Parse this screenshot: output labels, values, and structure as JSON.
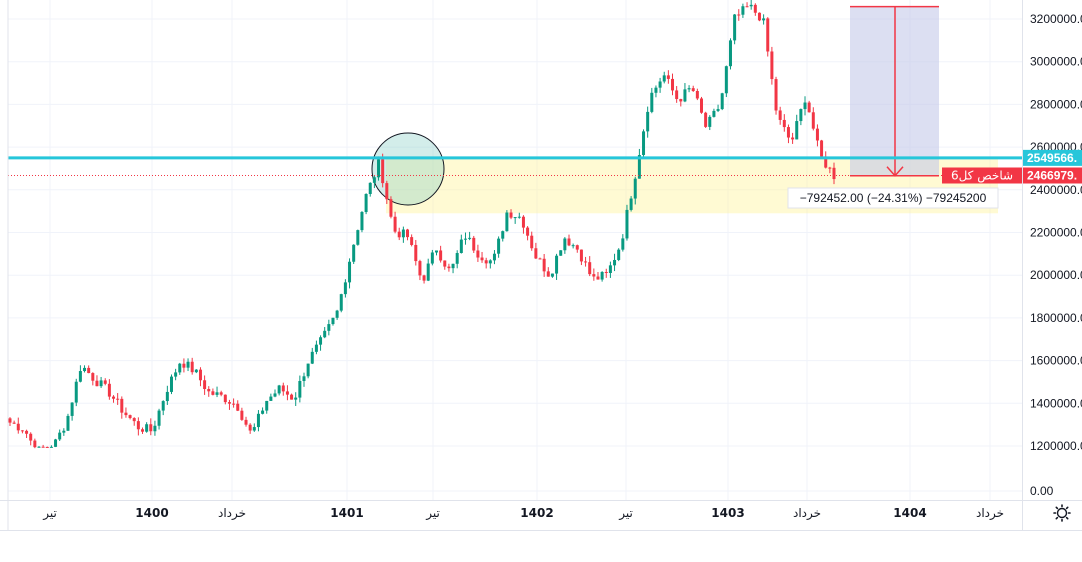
{
  "chart_data": {
    "type": "candlestick",
    "title": "",
    "instrument_label": "شاخص کل6",
    "y_axis": {
      "range": [
        0,
        3300000
      ],
      "scale": "custom-compressed-below-1200000",
      "ticks": [
        "3200000.00",
        "3000000.00",
        "2800000.00",
        "2600000.00",
        "2400000.00",
        "2200000.00",
        "2000000.00",
        "1800000.00",
        "1600000.00",
        "1400000.00",
        "1200000.00",
        "0.00"
      ],
      "tick_values": [
        3200000,
        3000000,
        2800000,
        2600000,
        2400000,
        2200000,
        2000000,
        1800000,
        1600000,
        1400000,
        1200000,
        0
      ]
    },
    "x_axis": {
      "labels": [
        {
          "text": "تیر",
          "bold": false
        },
        {
          "text": "1400",
          "bold": true
        },
        {
          "text": "خرداد",
          "bold": false
        },
        {
          "text": "1401",
          "bold": true
        },
        {
          "text": "تیر",
          "bold": false
        },
        {
          "text": "1402",
          "bold": true
        },
        {
          "text": "تیر",
          "bold": false
        },
        {
          "text": "1403",
          "bold": true
        },
        {
          "text": "خرداد",
          "bold": false
        },
        {
          "text": "1404",
          "bold": true
        },
        {
          "text": "خرداد",
          "bold": false
        }
      ]
    },
    "grid": true,
    "colors": {
      "up": "#089981",
      "down": "#f23645",
      "horizontal_line": "#26c6da",
      "zone_fill": "#fff59d",
      "circle_fill": "#80cbc4",
      "measure_fill": "#c5cae9",
      "measure_line": "#f23645",
      "price_tag_last": "#f23645",
      "price_tag_level": "#26c6da"
    },
    "horizontal_level": {
      "value": 2549566,
      "label": "2549566."
    },
    "last_price": {
      "value": 2466979,
      "label": "2466979."
    },
    "support_zone": {
      "top": 2549566,
      "bottom": 2290000
    },
    "measurement": {
      "from": 3258000,
      "to": 2466000,
      "label": "−792452.00  (−24.31%)  −79245200"
    },
    "candle_path": [
      1310000,
      1280000,
      1160000,
      1190000,
      1320000,
      1580000,
      1510000,
      1450000,
      1360000,
      1290000,
      1270000,
      1460000,
      1600000,
      1550000,
      1450000,
      1430000,
      1390000,
      1250000,
      1410000,
      1470000,
      1420000,
      1600000,
      1700000,
      1820000,
      2100000,
      2360000,
      2530000,
      2210000,
      2180000,
      1970000,
      2130000,
      2010000,
      2190000,
      2100000,
      2060000,
      2300000,
      2270000,
      2090000,
      2000000,
      2180000,
      2120000,
      1980000,
      2000000,
      2150000,
      2470000,
      2830000,
      2940000,
      2820000,
      2880000,
      2690000,
      2800000,
      3200000,
      3260000,
      3200000,
      2740000,
      2620000,
      2840000,
      2560000,
      2467000
    ]
  }
}
